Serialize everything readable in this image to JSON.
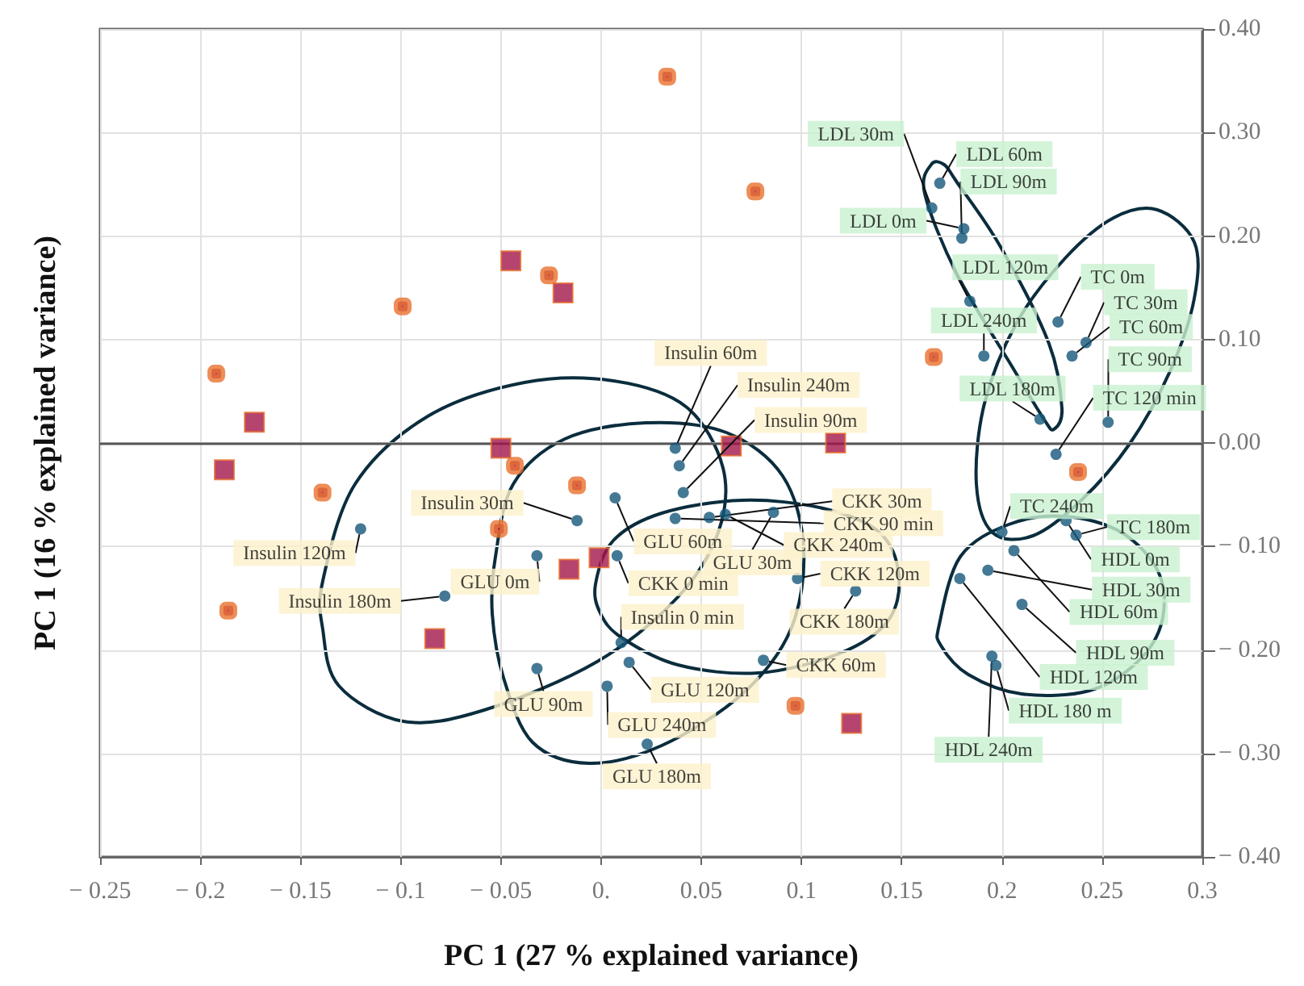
{
  "chart_data": {
    "type": "scatter",
    "xlabel": "PC 1 (27 % explained variance)",
    "ylabel": "PC 1 (16 % explained variance)",
    "xlim": [
      -0.25,
      0.3
    ],
    "xticks": [
      {
        "value": -0.25,
        "label": "− 0.25"
      },
      {
        "value": -0.2,
        "label": "− 0.2"
      },
      {
        "value": -0.15,
        "label": "− 0.15"
      },
      {
        "value": -0.1,
        "label": "− 0.1"
      },
      {
        "value": -0.05,
        "label": "− 0.05"
      },
      {
        "value": 0,
        "label": "0."
      },
      0.05,
      0.1,
      0.15,
      0.2,
      0.25,
      0.3
    ],
    "ylim": [
      -0.4,
      0.4
    ],
    "yticks": [
      {
        "value": -0.4,
        "label": "− 0.40"
      },
      {
        "value": -0.3,
        "label": "− 0.30"
      },
      {
        "value": -0.2,
        "label": "− 0.20"
      },
      {
        "value": -0.1,
        "label": "− 0.10"
      },
      {
        "value": 0,
        "label": "0.00"
      },
      {
        "value": 0.1,
        "label": "0.10"
      },
      {
        "value": 0.2,
        "label": "0.20"
      },
      {
        "value": 0.3,
        "label": "0.30"
      },
      {
        "value": 0.4,
        "label": "0.40"
      }
    ],
    "grid": true,
    "ref_lines": [
      {
        "axis": "y",
        "value": 0,
        "color": "#555555"
      }
    ],
    "series": [
      {
        "marker": "circle",
        "color": "#15587a",
        "x": [
          0.037,
          0.039,
          0.041,
          -0.012,
          -0.12,
          -0.078,
          0.01,
          -0.032,
          0.007,
          0.086,
          -0.032,
          0.014,
          0.003,
          0.023,
          0.054,
          0.037,
          0.062,
          0.008,
          0.098,
          0.127,
          0.081
        ],
        "values": [
          -0.005,
          -0.022,
          -0.048,
          -0.075,
          -0.083,
          -0.148,
          -0.193,
          -0.109,
          -0.053,
          -0.067,
          -0.218,
          -0.212,
          -0.235,
          -0.291,
          -0.072,
          -0.073,
          -0.069,
          -0.109,
          -0.131,
          -0.143,
          -0.21
        ],
        "value_labels": [
          "Insulin 60m",
          "Insulin 240m",
          "Insulin 90m",
          "Insulin 30m",
          "Insulin 120m",
          "Insulin 180m",
          "Insulin 0 min",
          "GLU 0m",
          "GLU 60m",
          "GLU 30m",
          "GLU 90m",
          "GLU 120m",
          "GLU 240m",
          "GLU 180m",
          "CKK 30m",
          "CKK 90 min",
          "CKK 240m",
          "CKK 0 min",
          "CKK 120m",
          "CKK 180m",
          "CKK 60m"
        ]
      },
      {
        "marker": "circle",
        "color": "#15587a",
        "x": [
          0.165,
          0.169,
          0.181,
          0.18,
          0.184,
          0.191,
          0.219,
          0.228,
          0.242,
          0.235,
          0.253,
          0.227,
          0.2,
          0.237,
          0.232,
          0.193,
          0.206,
          0.21,
          0.179,
          0.197,
          0.195
        ],
        "values": [
          0.227,
          0.251,
          0.207,
          0.198,
          0.137,
          0.084,
          0.023,
          0.117,
          0.097,
          0.084,
          0.02,
          -0.011,
          -0.086,
          -0.089,
          -0.075,
          -0.123,
          -0.104,
          -0.156,
          -0.131,
          -0.215,
          -0.206
        ],
        "value_labels": [
          "LDL 30m",
          "LDL 60m",
          "LDL 0m",
          "LDL 90m",
          "LDL 120m",
          "LDL 240m",
          "LDL 180m",
          "TC 0m",
          "TC 30m",
          "TC 60m",
          "TC 90m",
          "TC 120 min",
          "TC 240m",
          "TC 180m",
          "HDL 0m",
          "HDL 30m",
          "HDL 60m",
          "HDL 90m",
          "HDL 120m",
          "HDL 180 m",
          "HDL 240m"
        ]
      },
      {
        "marker": "square",
        "color": "#e8712e",
        "x": [
          0.033,
          0.077,
          -0.192,
          -0.099,
          -0.026,
          -0.139,
          -0.043,
          -0.012,
          -0.051,
          -0.186,
          0.166,
          0.238,
          0.097
        ],
        "values": [
          0.354,
          0.243,
          0.067,
          0.132,
          0.162,
          -0.048,
          -0.022,
          -0.041,
          -0.083,
          -0.162,
          0.083,
          -0.028,
          -0.254
        ]
      },
      {
        "marker": "square",
        "color": "#a3154a",
        "x": [
          -0.045,
          -0.019,
          -0.173,
          -0.188,
          -0.05,
          -0.016,
          -0.001,
          -0.083,
          0.065,
          0.117,
          0.125
        ],
        "values": [
          0.176,
          0.145,
          0.02,
          -0.026,
          -0.005,
          -0.122,
          -0.111,
          -0.189,
          -0.003,
          0.0,
          -0.271
        ]
      }
    ]
  }
}
